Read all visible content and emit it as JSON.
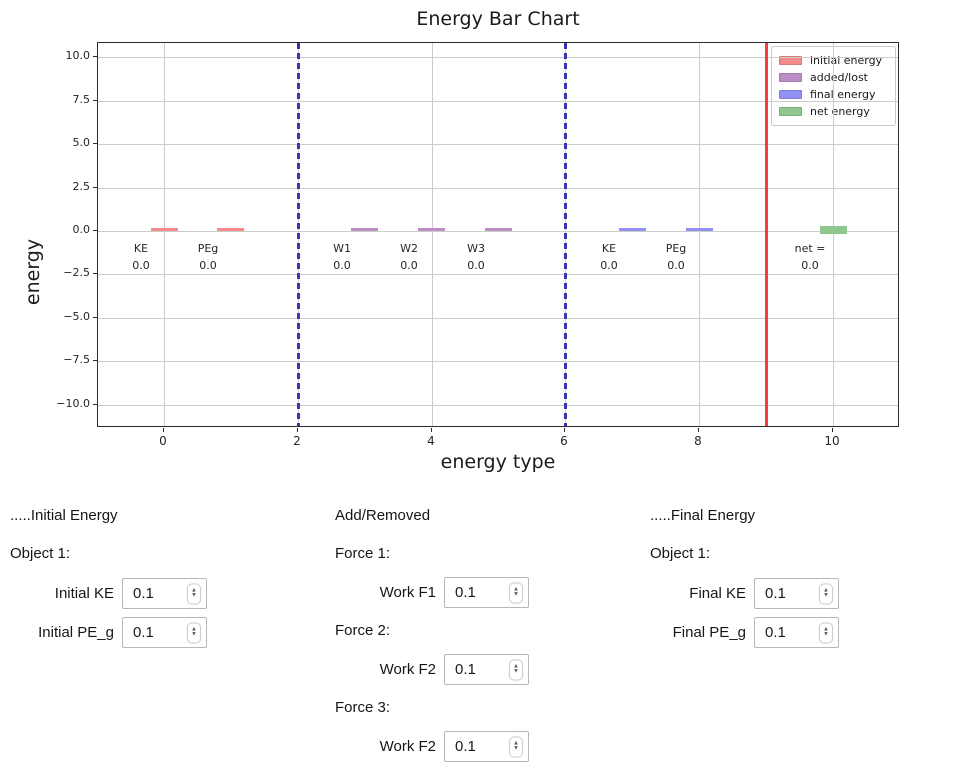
{
  "chart_data": {
    "type": "bar",
    "title": "Energy Bar Chart",
    "xlabel": "energy type",
    "ylabel": "energy",
    "xlim": [
      -1,
      11
    ],
    "ylim": [
      -11.3,
      10.8
    ],
    "xticks": [
      0,
      2,
      4,
      6,
      8,
      10
    ],
    "yticks": [
      10.0,
      7.5,
      5.0,
      2.5,
      0.0,
      -2.5,
      -5.0,
      -7.5,
      -10.0
    ],
    "ytick_labels": [
      "10.0",
      "7.5",
      "5.0",
      "2.5",
      "0.0",
      "−2.5",
      "−5.0",
      "−7.5",
      "−10.0"
    ],
    "grid": true,
    "legend_position": "upper right",
    "legend": [
      {
        "label": "initial energy",
        "color": "#f58a8a"
      },
      {
        "label": "added/lost",
        "color": "#bd8ec6"
      },
      {
        "label": "final energy",
        "color": "#9090f5"
      },
      {
        "label": "net energy",
        "color": "#8fc78f"
      }
    ],
    "bars": [
      {
        "x": 0,
        "label": "KE",
        "value_label": "0.0",
        "height": 0.15,
        "series": "initial energy",
        "color": "#f58a8a",
        "overlaps_axis": false
      },
      {
        "x": 1,
        "label": "PEg",
        "value_label": "0.0",
        "height": 0.15,
        "series": "initial energy",
        "color": "#f58a8a",
        "overlaps_axis": false
      },
      {
        "x": 3,
        "label": "W1",
        "value_label": "0.0",
        "height": 0.15,
        "series": "added/lost",
        "color": "#bd8ec6",
        "overlaps_axis": false
      },
      {
        "x": 4,
        "label": "W2",
        "value_label": "0.0",
        "height": 0.15,
        "series": "added/lost",
        "color": "#bd8ec6",
        "overlaps_axis": false
      },
      {
        "x": 5,
        "label": "W3",
        "value_label": "0.0",
        "height": 0.15,
        "series": "added/lost",
        "color": "#bd8ec6",
        "overlaps_axis": false
      },
      {
        "x": 7,
        "label": "KE",
        "value_label": "0.0",
        "height": 0.15,
        "series": "final energy",
        "color": "#9090f5",
        "overlaps_axis": false
      },
      {
        "x": 8,
        "label": "PEg",
        "value_label": "0.0",
        "height": 0.15,
        "series": "final energy",
        "color": "#9090f5",
        "overlaps_axis": false
      },
      {
        "x": 10,
        "label": "net =",
        "value_label": "0.0",
        "height": 0.3,
        "series": "net energy",
        "color": "#8fc78f",
        "overlaps_axis": true
      }
    ],
    "vlines": [
      {
        "x": 2,
        "style": "dashed",
        "color": "#3737b2"
      },
      {
        "x": 6,
        "style": "dashed",
        "color": "#3737b2"
      },
      {
        "x": 9,
        "style": "solid",
        "color": "#f93b3b"
      }
    ]
  },
  "controls": {
    "initial": {
      "header": ".....Initial Energy",
      "object_label": "Object 1:",
      "rows": [
        {
          "label": "Initial KE",
          "value": "0.1"
        },
        {
          "label": "Initial PE_g",
          "value": "0.1"
        }
      ]
    },
    "added": {
      "header": "Add/Removed",
      "groups": [
        {
          "label": "Force 1:",
          "row": {
            "label": "Work F1",
            "value": "0.1"
          }
        },
        {
          "label": "Force 2:",
          "row": {
            "label": "Work F2",
            "value": "0.1"
          }
        },
        {
          "label": "Force 3:",
          "row": {
            "label": "Work F2",
            "value": "0.1"
          }
        }
      ]
    },
    "final": {
      "header": ".....Final Energy",
      "object_label": "Object 1:",
      "rows": [
        {
          "label": "Final KE",
          "value": "0.1"
        },
        {
          "label": "Final PE_g",
          "value": "0.1"
        }
      ]
    }
  }
}
